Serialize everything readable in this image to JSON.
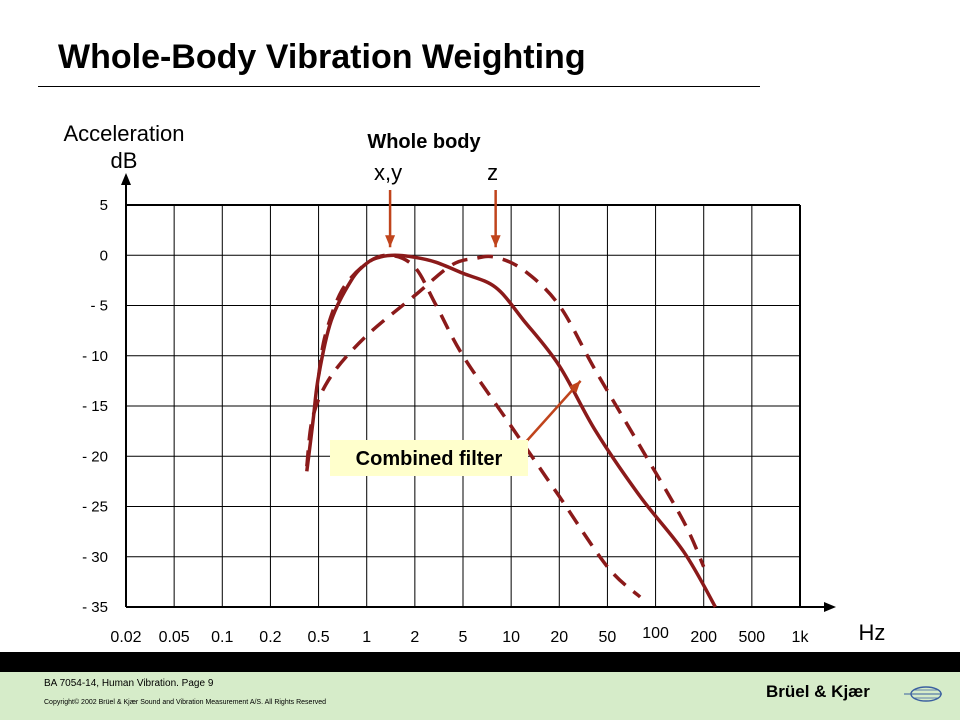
{
  "slide": {
    "title": "Whole-Body Vibration Weighting"
  },
  "footer": {
    "line1": "BA 7054-14, Human Vibration. Page 9",
    "line2": "Copyright© 2002 Brüel & Kjær Sound and Vibration Measurement A/S. All Rights Reserved",
    "brand": "Brüel & Kjær"
  },
  "colors": {
    "curve": "#8b1a1a",
    "arrow": "#c0441c",
    "label_bg": "#ffffcc"
  },
  "chart_data": {
    "type": "line",
    "title": "",
    "ylabel_line1": "Acceleration",
    "ylabel_line2": "dB",
    "xlabel": "Hz",
    "x_scale": "log",
    "ylim": [
      -35,
      5
    ],
    "grid": true,
    "y_ticks": [
      {
        "value": 5,
        "label": "5"
      },
      {
        "value": 0,
        "label": "0"
      },
      {
        "value": -5,
        "label": "- 5"
      },
      {
        "value": -10,
        "label": "- 10"
      },
      {
        "value": -15,
        "label": "- 15"
      },
      {
        "value": -20,
        "label": "- 20"
      },
      {
        "value": -25,
        "label": "- 25"
      },
      {
        "value": -30,
        "label": "- 30"
      },
      {
        "value": -35,
        "label": "- 35"
      }
    ],
    "x_ticks": [
      {
        "value": 0.02,
        "label": "0.02"
      },
      {
        "value": 0.05,
        "label": "0.05"
      },
      {
        "value": 0.1,
        "label": "0.1"
      },
      {
        "value": 0.2,
        "label": "0.2"
      },
      {
        "value": 0.5,
        "label": "0.5"
      },
      {
        "value": 1,
        "label": "1"
      },
      {
        "value": 2,
        "label": "2"
      },
      {
        "value": 5,
        "label": "5"
      },
      {
        "value": 10,
        "label": "10"
      },
      {
        "value": 20,
        "label": "20"
      },
      {
        "value": 50,
        "label": "50"
      },
      {
        "value": 100,
        "label": "100"
      },
      {
        "value": 200,
        "label": "200"
      },
      {
        "value": 500,
        "label": "500"
      },
      {
        "value": 1000,
        "label": "1k"
      }
    ],
    "group_label": "Whole body",
    "series": [
      {
        "name": "x,y",
        "style": "dashed",
        "x": [
          0.5,
          0.55,
          0.7,
          1.0,
          1.4,
          2.0,
          3.0,
          5.0,
          10.0,
          20.0,
          50.0,
          80.0
        ],
        "y": [
          -12.0,
          -8.0,
          -3.5,
          -0.8,
          0.0,
          -1.2,
          -5.0,
          -10.0,
          -17.0,
          -24.0,
          -31.0,
          -34.0
        ]
      },
      {
        "name": "z",
        "style": "dashed",
        "x": [
          0.4,
          0.45,
          0.6,
          1.0,
          2.0,
          4.0,
          6.0,
          8.0,
          12.0,
          20.0,
          40.0,
          80.0,
          150.0,
          200.0
        ],
        "y": [
          -21.0,
          -16.0,
          -12.0,
          -8.0,
          -4.0,
          -1.0,
          -0.3,
          -0.2,
          -1.5,
          -5.0,
          -11.5,
          -19.0,
          -26.5,
          -31.0
        ]
      },
      {
        "name": "Combined filter",
        "style": "solid",
        "x": [
          0.4,
          0.45,
          0.5,
          0.6,
          0.8,
          1.0,
          1.2,
          1.5,
          2.0,
          3.0,
          5.0,
          8.0,
          12.0,
          20.0,
          40.0,
          80.0,
          150.0,
          250.0
        ],
        "y": [
          -21.5,
          -16.5,
          -12.0,
          -6.5,
          -2.5,
          -0.8,
          -0.2,
          0.0,
          -0.2,
          -0.7,
          -1.8,
          -3.2,
          -6.5,
          -11.0,
          -17.5,
          -24.0,
          -29.5,
          -35.0
        ]
      }
    ],
    "annotations": [
      {
        "label": "x,y",
        "points_to": {
          "x": 1.4,
          "y": 0.0
        }
      },
      {
        "label": "z",
        "points_to": {
          "x": 8.0,
          "y": 0.0
        }
      },
      {
        "label": "Combined filter",
        "points_to": {
          "x": 30.0,
          "y": -12.5
        }
      }
    ]
  }
}
